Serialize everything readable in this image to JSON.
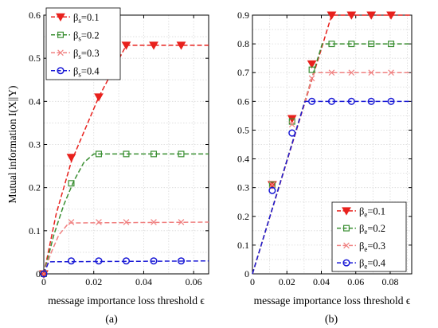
{
  "figure": {
    "caption_a": "(a)",
    "caption_b": "(b)"
  },
  "chart_data": [
    {
      "type": "line",
      "panel": "(a)",
      "xlabel": "message importance loss threshold ϵ",
      "ylabel": "Mutual information I(X||Y)",
      "xlim": [
        0,
        0.066
      ],
      "ylim": [
        0,
        0.6
      ],
      "xticks": [
        0,
        0.02,
        0.04,
        0.06
      ],
      "xticklabels": [
        "0",
        "0.02",
        "0.04",
        "0.06"
      ],
      "yticks": [
        0,
        0.1,
        0.2,
        0.3,
        0.4,
        0.5,
        0.6
      ],
      "yticklabels": [
        "0",
        "0.1",
        "0.2",
        "0.3",
        "0.4",
        "0.5",
        "0.6"
      ],
      "grid": true,
      "legend_position": "top-left",
      "legend_symbol": "β",
      "legend_subscript": "s",
      "series": [
        {
          "name": "=0.1",
          "color": "#e8211d",
          "marker": "triangle-down",
          "curve": [
            [
              0,
              0
            ],
            [
              0.005,
              0.14
            ],
            [
              0.011,
              0.26
            ],
            [
              0.022,
              0.41
            ],
            [
              0.033,
              0.53
            ],
            [
              0.066,
              0.53
            ]
          ],
          "marker_x": [
            0,
            0.011,
            0.022,
            0.033,
            0.044,
            0.055
          ],
          "marker_y": [
            0,
            0.27,
            0.41,
            0.53,
            0.53,
            0.53
          ]
        },
        {
          "name": "=0.2",
          "color": "#3a8f32",
          "marker": "square",
          "curve": [
            [
              0,
              0
            ],
            [
              0.004,
              0.09
            ],
            [
              0.008,
              0.16
            ],
            [
              0.012,
              0.215
            ],
            [
              0.016,
              0.258
            ],
            [
              0.02,
              0.278
            ],
            [
              0.066,
              0.278
            ]
          ],
          "marker_x": [
            0,
            0.011,
            0.022,
            0.033,
            0.044,
            0.055
          ],
          "marker_y": [
            0,
            0.21,
            0.278,
            0.278,
            0.278,
            0.278
          ]
        },
        {
          "name": "=0.3",
          "color": "#f08080",
          "marker": "x",
          "curve": [
            [
              0,
              0
            ],
            [
              0.003,
              0.05
            ],
            [
              0.006,
              0.09
            ],
            [
              0.01,
              0.118
            ],
            [
              0.066,
              0.12
            ]
          ],
          "marker_x": [
            0,
            0.011,
            0.022,
            0.033,
            0.044,
            0.055
          ],
          "marker_y": [
            0,
            0.12,
            0.12,
            0.12,
            0.12,
            0.12
          ]
        },
        {
          "name": "=0.4",
          "color": "#1a1ad6",
          "marker": "circle",
          "curve": [
            [
              0,
              0
            ],
            [
              0.002,
              0.028
            ],
            [
              0.066,
              0.03
            ]
          ],
          "marker_x": [
            0,
            0.011,
            0.022,
            0.033,
            0.044,
            0.055
          ],
          "marker_y": [
            0,
            0.03,
            0.03,
            0.03,
            0.03,
            0.03
          ]
        }
      ]
    },
    {
      "type": "line",
      "panel": "(b)",
      "xlabel": "message importance loss threshold ϵ",
      "ylabel": "",
      "xlim": [
        0,
        0.0925
      ],
      "ylim": [
        0,
        0.9
      ],
      "xticks": [
        0,
        0.02,
        0.04,
        0.06,
        0.08
      ],
      "xticklabels": [
        "0",
        "0.02",
        "0.04",
        "0.06",
        "0.08"
      ],
      "yticks": [
        0,
        0.1,
        0.2,
        0.3,
        0.4,
        0.5,
        0.6,
        0.7,
        0.8,
        0.9
      ],
      "yticklabels": [
        "0",
        "0.1",
        "0.2",
        "0.3",
        "0.4",
        "0.5",
        "0.6",
        "0.7",
        "0.8",
        "0.9"
      ],
      "grid": true,
      "legend_position": "bottom-right",
      "legend_symbol": "β",
      "legend_subscript": "e",
      "series": [
        {
          "name": "=0.1",
          "color": "#e8211d",
          "marker": "triangle-down",
          "curve": [
            [
              0,
              0
            ],
            [
              0.046,
              0.9
            ],
            [
              0.0925,
              0.9
            ]
          ],
          "marker_x": [
            0.0115,
            0.023,
            0.0345,
            0.046,
            0.0575,
            0.069,
            0.0805
          ],
          "marker_y": [
            0.31,
            0.54,
            0.73,
            0.9,
            0.9,
            0.9,
            0.9
          ]
        },
        {
          "name": "=0.2",
          "color": "#3a8f32",
          "marker": "square",
          "curve": [
            [
              0,
              0
            ],
            [
              0.0405,
              0.8
            ],
            [
              0.0925,
              0.8
            ]
          ],
          "marker_x": [
            0.0115,
            0.023,
            0.0345,
            0.046,
            0.0575,
            0.069,
            0.0805
          ],
          "marker_y": [
            0.31,
            0.53,
            0.71,
            0.8,
            0.8,
            0.8,
            0.8
          ]
        },
        {
          "name": "=0.3",
          "color": "#f08080",
          "marker": "x",
          "curve": [
            [
              0,
              0
            ],
            [
              0.0355,
              0.7
            ],
            [
              0.0925,
              0.7
            ]
          ],
          "marker_x": [
            0.0115,
            0.023,
            0.0345,
            0.046,
            0.0575,
            0.069,
            0.0805
          ],
          "marker_y": [
            0.31,
            0.52,
            0.68,
            0.7,
            0.7,
            0.7,
            0.7
          ]
        },
        {
          "name": "=0.4",
          "color": "#1a1ad6",
          "marker": "circle",
          "curve": [
            [
              0,
              0
            ],
            [
              0.0305,
              0.6
            ],
            [
              0.0925,
              0.6
            ]
          ],
          "marker_x": [
            0.0115,
            0.023,
            0.0345,
            0.046,
            0.0575,
            0.069,
            0.0805
          ],
          "marker_y": [
            0.29,
            0.49,
            0.6,
            0.6,
            0.6,
            0.6,
            0.6
          ]
        }
      ]
    }
  ]
}
